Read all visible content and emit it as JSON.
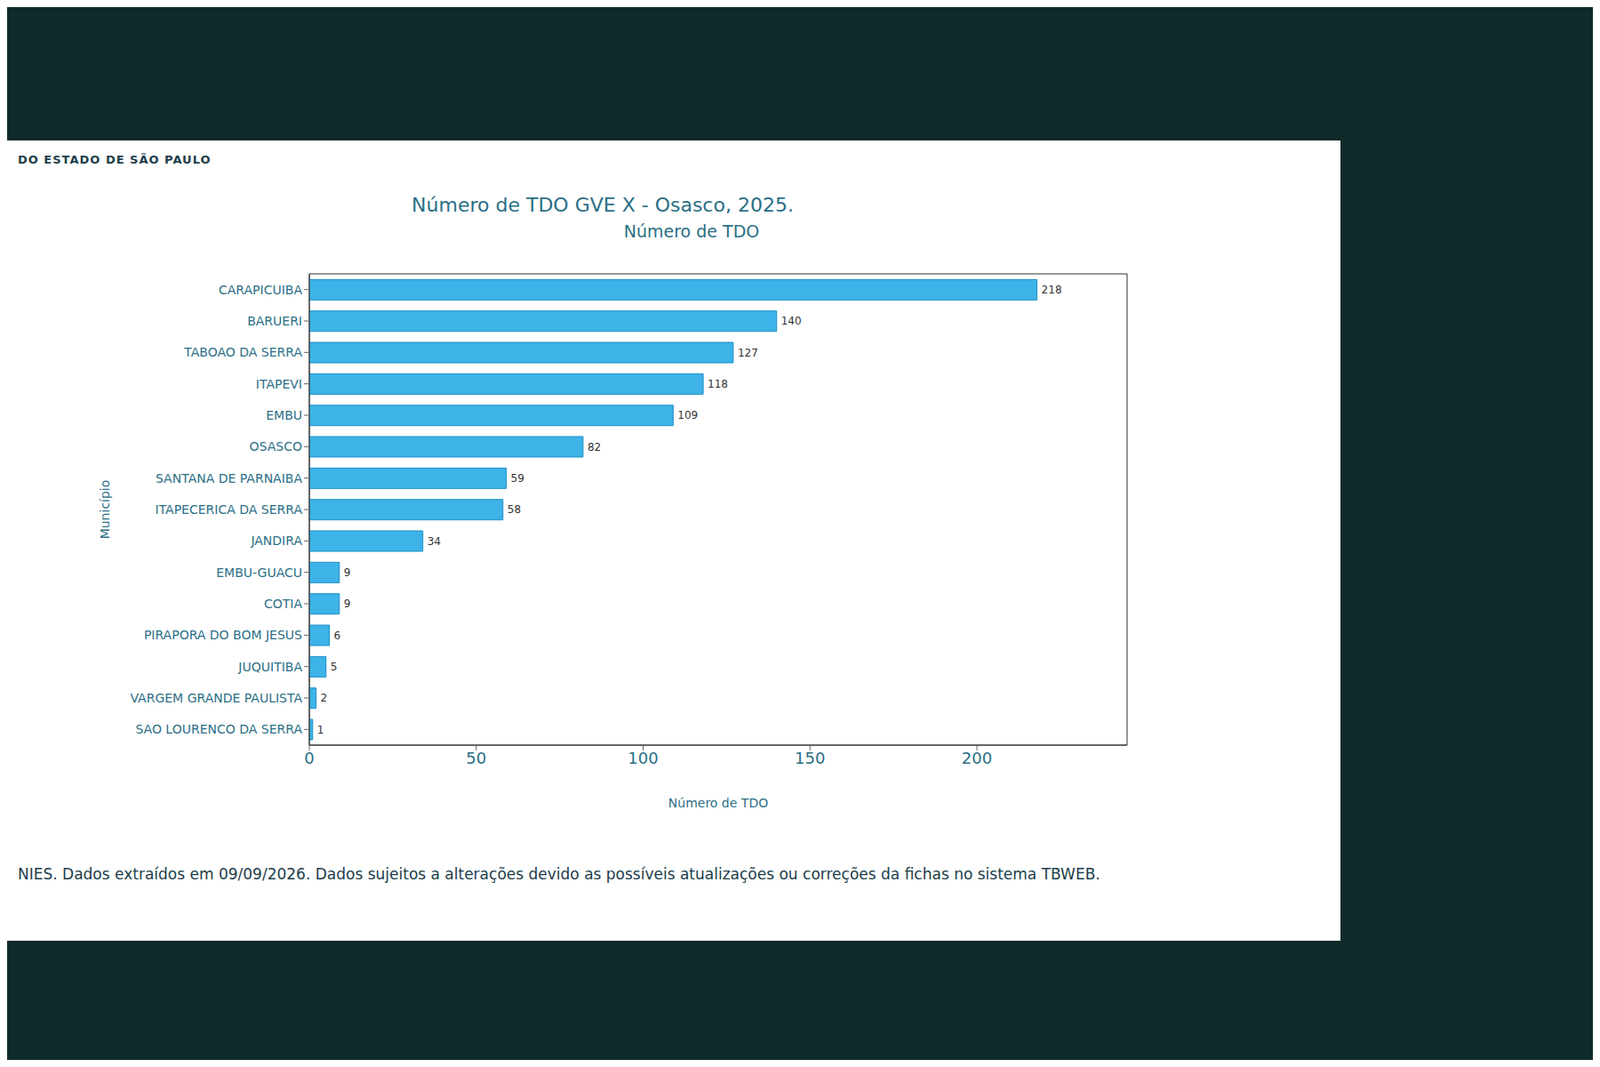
{
  "chart_data": {
    "type": "bar",
    "header": "DO ESTADO DE SÃO PAULO",
    "title": "Número de TDO GVE X - Osasco, 2025.",
    "subtitle": "Número de TDO",
    "xlabel": "Número de TDO",
    "ylabel": "Município",
    "footnote": "NIES. Dados extraídos em 09/09/2026. Dados sujeitos a alterações devido as possíveis atualizações ou correções da fichas no sistema TBWEB.",
    "orientation": "horizontal",
    "categories": [
      "CARAPICUIBA",
      "BARUERI",
      "TABOAO DA SERRA",
      "ITAPEVI",
      "EMBU",
      "OSASCO",
      "SANTANA DE PARNAIBA",
      "ITAPECERICA DA SERRA",
      "JANDIRA",
      "EMBU-GUACU",
      "COTIA",
      "PIRAPORA DO BOM JESUS",
      "JUQUITIBA",
      "VARGEM GRANDE PAULISTA",
      "SAO LOURENCO DA SERRA"
    ],
    "values": [
      218,
      140,
      127,
      118,
      109,
      82,
      59,
      58,
      34,
      9,
      9,
      6,
      5,
      2,
      1
    ],
    "color": "#3db3e8",
    "xlim": [
      0,
      245
    ],
    "xticks": [
      0,
      50,
      100,
      150,
      200
    ],
    "data_labels": true,
    "grid": false
  }
}
